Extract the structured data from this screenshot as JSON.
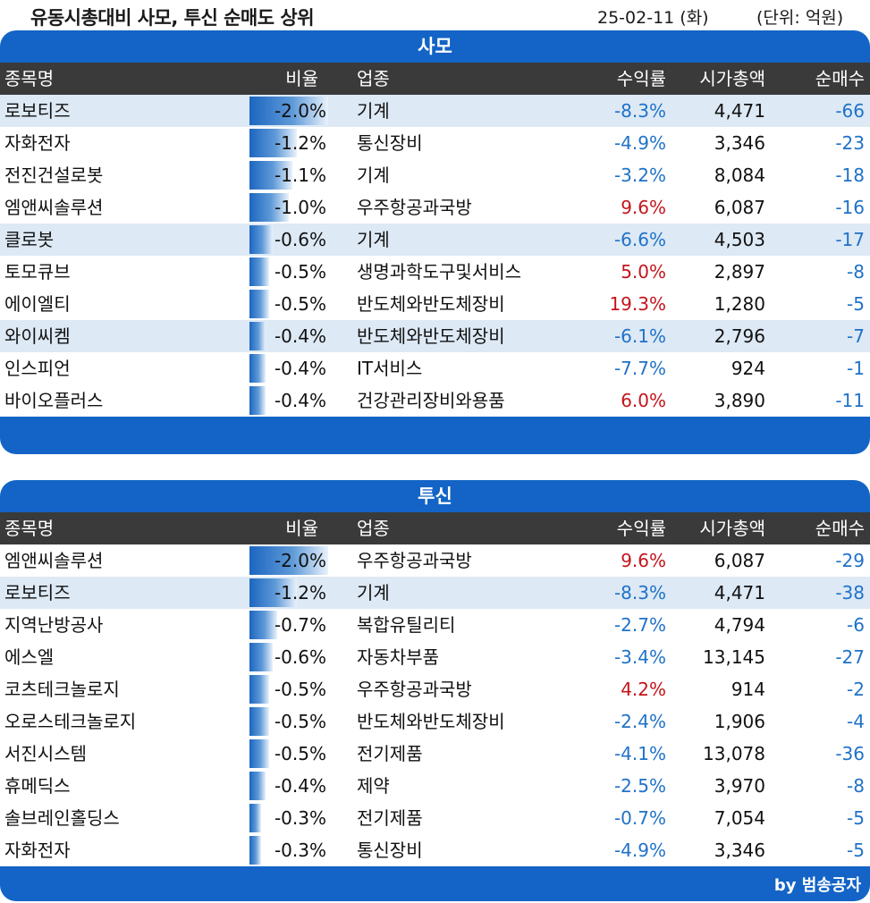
{
  "header": {
    "title": "유동시총대비 사모, 투신 순매도 상위",
    "date": "25-02-11 (화)",
    "unit": "(단위: 억원)"
  },
  "columns": {
    "name": "종목명",
    "ratio": "비율",
    "industry": "업종",
    "return": "수익률",
    "mktcap": "시가총액",
    "net": "순매수"
  },
  "footer": {
    "byline": "by 범송공자"
  },
  "colors": {
    "header_blue": "#1364c6",
    "negative": "#1f72c8",
    "positive": "#c4141c",
    "highlight_row": "#dde9f5"
  },
  "chart_data": [
    {
      "type": "table",
      "title": "사모",
      "rows": [
        {
          "name": "로보티즈",
          "ratio": "-2.0%",
          "ratio_value": -2.0,
          "industry": "기계",
          "return": "-8.3%",
          "mktcap": "4,471",
          "net": "-66",
          "highlight": true
        },
        {
          "name": "자화전자",
          "ratio": "-1.2%",
          "ratio_value": -1.2,
          "industry": "통신장비",
          "return": "-4.9%",
          "mktcap": "3,346",
          "net": "-23",
          "highlight": false
        },
        {
          "name": "전진건설로봇",
          "ratio": "-1.1%",
          "ratio_value": -1.1,
          "industry": "기계",
          "return": "-3.2%",
          "mktcap": "8,084",
          "net": "-18",
          "highlight": false
        },
        {
          "name": "엠앤씨솔루션",
          "ratio": "-1.0%",
          "ratio_value": -1.0,
          "industry": "우주항공과국방",
          "return": "9.6%",
          "mktcap": "6,087",
          "net": "-16",
          "highlight": false
        },
        {
          "name": "클로봇",
          "ratio": "-0.6%",
          "ratio_value": -0.6,
          "industry": "기계",
          "return": "-6.6%",
          "mktcap": "4,503",
          "net": "-17",
          "highlight": true
        },
        {
          "name": "토모큐브",
          "ratio": "-0.5%",
          "ratio_value": -0.5,
          "industry": "생명과학도구및서비스",
          "return": "5.0%",
          "mktcap": "2,897",
          "net": "-8",
          "highlight": false
        },
        {
          "name": "에이엘티",
          "ratio": "-0.5%",
          "ratio_value": -0.5,
          "industry": "반도체와반도체장비",
          "return": "19.3%",
          "mktcap": "1,280",
          "net": "-5",
          "highlight": false
        },
        {
          "name": "와이씨켐",
          "ratio": "-0.4%",
          "ratio_value": -0.4,
          "industry": "반도체와반도체장비",
          "return": "-6.1%",
          "mktcap": "2,796",
          "net": "-7",
          "highlight": true
        },
        {
          "name": "인스피언",
          "ratio": "-0.4%",
          "ratio_value": -0.4,
          "industry": "IT서비스",
          "return": "-7.7%",
          "mktcap": "924",
          "net": "-1",
          "highlight": false
        },
        {
          "name": "바이오플러스",
          "ratio": "-0.4%",
          "ratio_value": -0.4,
          "industry": "건강관리장비와용품",
          "return": "6.0%",
          "mktcap": "3,890",
          "net": "-11",
          "highlight": false
        }
      ]
    },
    {
      "type": "table",
      "title": "투신",
      "rows": [
        {
          "name": "엠앤씨솔루션",
          "ratio": "-2.0%",
          "ratio_value": -2.0,
          "industry": "우주항공과국방",
          "return": "9.6%",
          "mktcap": "6,087",
          "net": "-29",
          "highlight": false
        },
        {
          "name": "로보티즈",
          "ratio": "-1.2%",
          "ratio_value": -1.2,
          "industry": "기계",
          "return": "-8.3%",
          "mktcap": "4,471",
          "net": "-38",
          "highlight": true
        },
        {
          "name": "지역난방공사",
          "ratio": "-0.7%",
          "ratio_value": -0.7,
          "industry": "복합유틸리티",
          "return": "-2.7%",
          "mktcap": "4,794",
          "net": "-6",
          "highlight": false
        },
        {
          "name": "에스엘",
          "ratio": "-0.6%",
          "ratio_value": -0.6,
          "industry": "자동차부품",
          "return": "-3.4%",
          "mktcap": "13,145",
          "net": "-27",
          "highlight": false
        },
        {
          "name": "코츠테크놀로지",
          "ratio": "-0.5%",
          "ratio_value": -0.5,
          "industry": "우주항공과국방",
          "return": "4.2%",
          "mktcap": "914",
          "net": "-2",
          "highlight": false
        },
        {
          "name": "오로스테크놀로지",
          "ratio": "-0.5%",
          "ratio_value": -0.5,
          "industry": "반도체와반도체장비",
          "return": "-2.4%",
          "mktcap": "1,906",
          "net": "-4",
          "highlight": false
        },
        {
          "name": "서진시스템",
          "ratio": "-0.5%",
          "ratio_value": -0.5,
          "industry": "전기제품",
          "return": "-4.1%",
          "mktcap": "13,078",
          "net": "-36",
          "highlight": false
        },
        {
          "name": "휴메딕스",
          "ratio": "-0.4%",
          "ratio_value": -0.4,
          "industry": "제약",
          "return": "-2.5%",
          "mktcap": "3,970",
          "net": "-8",
          "highlight": false
        },
        {
          "name": "솔브레인홀딩스",
          "ratio": "-0.3%",
          "ratio_value": -0.3,
          "industry": "전기제품",
          "return": "-0.7%",
          "mktcap": "7,054",
          "net": "-5",
          "highlight": false
        },
        {
          "name": "자화전자",
          "ratio": "-0.3%",
          "ratio_value": -0.3,
          "industry": "통신장비",
          "return": "-4.9%",
          "mktcap": "3,346",
          "net": "-5",
          "highlight": false
        }
      ]
    }
  ]
}
